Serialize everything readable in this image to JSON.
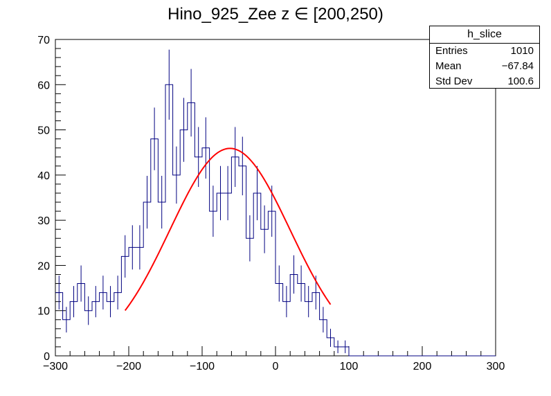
{
  "chart_data": {
    "type": "bar",
    "title": "Hino_925_Zee z  ∈ [200,250)",
    "xlabel": "",
    "ylabel": "",
    "xlim": [
      -300,
      300
    ],
    "ylim": [
      0,
      70
    ],
    "bin_width": 10,
    "x_ticks": [
      -300,
      -200,
      -100,
      0,
      100,
      200,
      300
    ],
    "x_tick_labels": [
      "−300",
      "−200",
      "−100",
      "0",
      "100",
      "200",
      "300"
    ],
    "y_ticks": [
      0,
      10,
      20,
      30,
      40,
      50,
      60,
      70
    ],
    "y_tick_labels": [
      "0",
      "10",
      "20",
      "30",
      "40",
      "50",
      "60",
      "70"
    ],
    "histogram": {
      "name": "h_slice",
      "color": "#000080",
      "bin_low_edges": [
        -300,
        -290,
        -280,
        -270,
        -260,
        -250,
        -240,
        -230,
        -220,
        -210,
        -200,
        -190,
        -180,
        -170,
        -160,
        -150,
        -140,
        -130,
        -120,
        -110,
        -100,
        -90,
        -80,
        -70,
        -60,
        -50,
        -40,
        -30,
        -20,
        -10,
        0,
        10,
        20,
        30,
        40,
        50,
        60,
        70,
        80,
        90,
        100,
        110,
        120,
        130,
        140,
        150,
        160,
        170,
        180,
        190,
        200,
        210,
        220,
        230,
        240,
        250,
        260,
        270,
        280,
        290
      ],
      "values": [
        14,
        8,
        12,
        16,
        10,
        12,
        14,
        12,
        14,
        22,
        24,
        24,
        34,
        48,
        34,
        60,
        40,
        50,
        56,
        44,
        46,
        32,
        36,
        36,
        44,
        42,
        26,
        36,
        28,
        32,
        16,
        12,
        18,
        16,
        12,
        14,
        8,
        4,
        2,
        2,
        0,
        0,
        0,
        0,
        0,
        0,
        0,
        0,
        0,
        0,
        0,
        0,
        0,
        0,
        0,
        0,
        0,
        0,
        0,
        0
      ],
      "errors": [
        3.74,
        2.83,
        3.46,
        4.0,
        3.16,
        3.46,
        3.74,
        3.46,
        3.74,
        4.69,
        4.9,
        4.9,
        5.83,
        6.93,
        5.83,
        7.75,
        6.32,
        7.07,
        7.48,
        6.63,
        6.78,
        5.66,
        6.0,
        6.0,
        6.63,
        6.48,
        5.1,
        6.0,
        5.29,
        5.66,
        4.0,
        3.46,
        4.24,
        4.0,
        3.46,
        3.74,
        2.83,
        2.0,
        1.41,
        1.41,
        0,
        0,
        0,
        0,
        0,
        0,
        0,
        0,
        0,
        0,
        0,
        0,
        0,
        0,
        0,
        0,
        0,
        0,
        0,
        0
      ]
    },
    "fit": {
      "color": "#ff0000",
      "function": "gaus",
      "constant": 45.9,
      "mean": -62,
      "sigma": 82,
      "x_range": [
        -205,
        75
      ]
    },
    "stats_box": {
      "title": "h_slice",
      "rows": [
        {
          "label": "Entries",
          "value": "1010"
        },
        {
          "label": "Mean",
          "value": "−67.84"
        },
        {
          "label": "Std Dev",
          "value": "100.6"
        }
      ]
    },
    "grid": false,
    "legend": "top-right"
  }
}
